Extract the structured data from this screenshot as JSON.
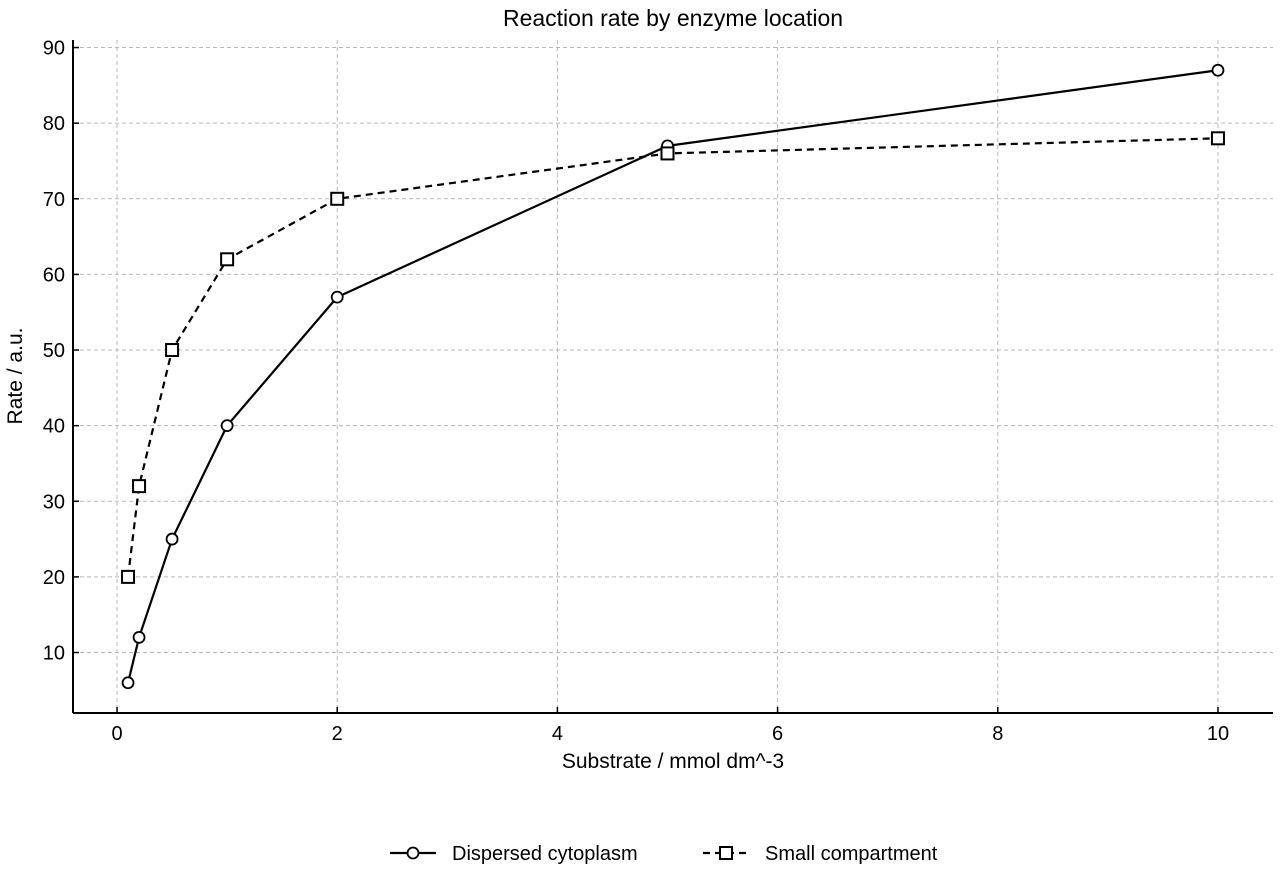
{
  "chart_data": {
    "type": "line",
    "title": "Reaction rate by enzyme location",
    "xlabel": "Substrate / mmol dm^-3",
    "ylabel": "Rate / a.u.",
    "xlim": [
      -0.4,
      10.5
    ],
    "ylim": [
      2,
      91
    ],
    "xticks": [
      0,
      2,
      4,
      6,
      8,
      10
    ],
    "yticks": [
      10,
      20,
      30,
      40,
      50,
      60,
      70,
      80,
      90
    ],
    "grid": true,
    "legend_position": "bottom-center",
    "series": [
      {
        "name": "Dispersed cytoplasm",
        "marker": "circle",
        "line_style": "solid",
        "color": "#000000",
        "x": [
          0.1,
          0.2,
          0.5,
          1,
          2,
          5,
          10
        ],
        "y": [
          6,
          12,
          25,
          40,
          57,
          77,
          87
        ]
      },
      {
        "name": "Small compartment",
        "marker": "square",
        "line_style": "dashed",
        "color": "#000000",
        "x": [
          0.1,
          0.2,
          0.5,
          1,
          2,
          5,
          10
        ],
        "y": [
          20,
          32,
          50,
          62,
          70,
          76,
          78
        ]
      }
    ]
  }
}
